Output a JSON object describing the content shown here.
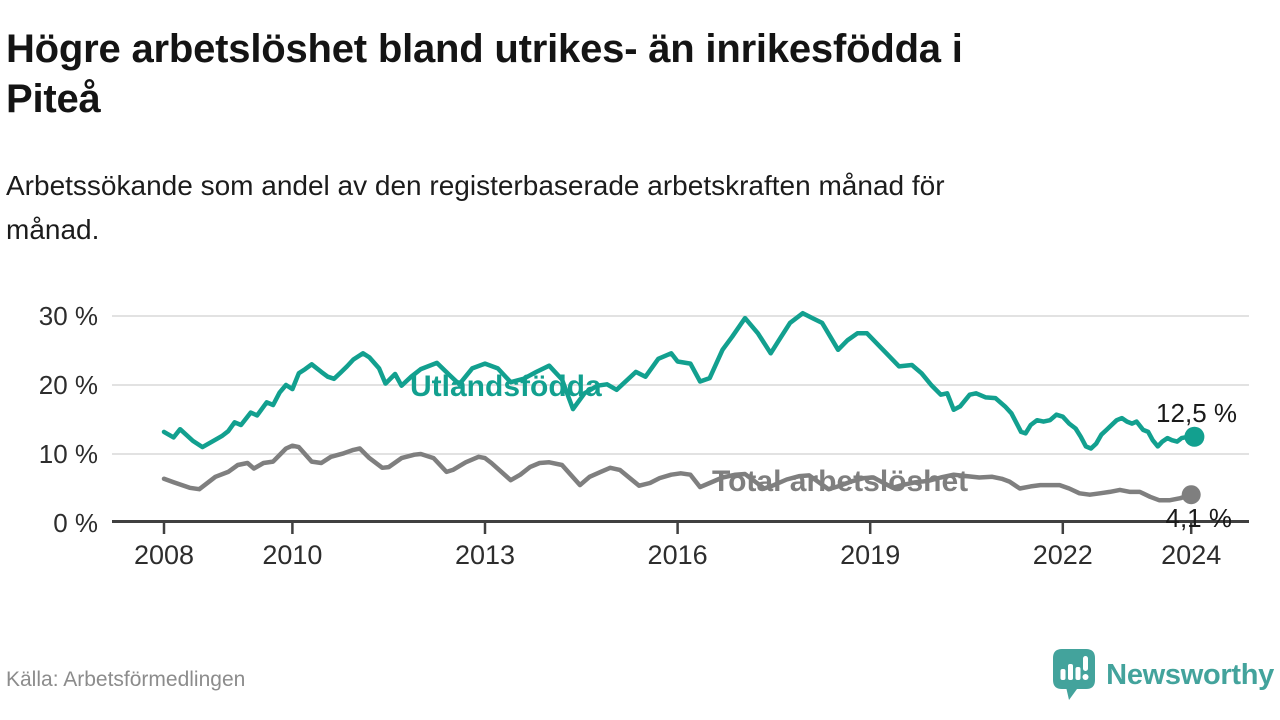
{
  "title": "Högre arbetslöshet bland utrikes- än inrikesfödda i Piteå",
  "subtitle": "Arbetssökande som andel av den registerbaserade arbetskraften månad för månad.",
  "source": "Källa: Arbetsförmedlingen",
  "brand": {
    "name": "Newsworthy",
    "color": "#43a39c",
    "icon": "speech-bubble-bar-chart-icon"
  },
  "colors": {
    "foreign_born_line": "#12a08f",
    "total_line": "#7f7f7f",
    "gridline": "#d9d9d9",
    "axis": "#404040",
    "value_label": "#1a1a1a",
    "muted_text": "#8c8c8c"
  },
  "chart_data": {
    "type": "line",
    "title": "Högre arbetslöshet bland utrikes- än inrikesfödda i Piteå",
    "subtitle": "Arbetssökande som andel av den registerbaserade arbetskraften månad för månad.",
    "unit": "%",
    "xlim": [
      2007.2,
      2024.9
    ],
    "ylim": [
      0,
      31
    ],
    "grid": true,
    "legend_position": "inline-labels",
    "x_ticks": [
      {
        "year": 2008,
        "label": "2008"
      },
      {
        "year": 2010,
        "label": "2010"
      },
      {
        "year": 2013,
        "label": "2013"
      },
      {
        "year": 2016,
        "label": "2016"
      },
      {
        "year": 2019,
        "label": "2019"
      },
      {
        "year": 2022,
        "label": "2022"
      },
      {
        "year": 2024,
        "label": "2024"
      }
    ],
    "y_ticks": [
      {
        "value": 0,
        "label": "0 %"
      },
      {
        "value": 10,
        "label": "10 %"
      },
      {
        "value": 20,
        "label": "20 %"
      },
      {
        "value": 30,
        "label": "30 %"
      }
    ],
    "series": [
      {
        "name": "Utlandsfödda",
        "color": "#12a08f",
        "end_label": "12,5 %",
        "end_value": 12.5,
        "points": [
          [
            2008.0,
            13.2
          ],
          [
            2008.15,
            12.4
          ],
          [
            2008.25,
            13.6
          ],
          [
            2008.45,
            11.9
          ],
          [
            2008.6,
            11.0
          ],
          [
            2008.75,
            11.8
          ],
          [
            2008.9,
            12.6
          ],
          [
            2009.0,
            13.3
          ],
          [
            2009.1,
            14.6
          ],
          [
            2009.2,
            14.2
          ],
          [
            2009.35,
            16.0
          ],
          [
            2009.45,
            15.6
          ],
          [
            2009.6,
            17.5
          ],
          [
            2009.7,
            17.1
          ],
          [
            2009.8,
            18.9
          ],
          [
            2009.9,
            20.0
          ],
          [
            2010.0,
            19.4
          ],
          [
            2010.1,
            21.7
          ],
          [
            2010.2,
            22.3
          ],
          [
            2010.3,
            23.0
          ],
          [
            2010.45,
            21.9
          ],
          [
            2010.55,
            21.2
          ],
          [
            2010.65,
            20.9
          ],
          [
            2010.75,
            21.8
          ],
          [
            2010.85,
            22.7
          ],
          [
            2010.95,
            23.7
          ],
          [
            2011.1,
            24.6
          ],
          [
            2011.2,
            24.0
          ],
          [
            2011.35,
            22.4
          ],
          [
            2011.45,
            20.2
          ],
          [
            2011.6,
            21.6
          ],
          [
            2011.7,
            19.9
          ],
          [
            2011.85,
            21.2
          ],
          [
            2012.0,
            22.3
          ],
          [
            2012.25,
            23.2
          ],
          [
            2012.45,
            21.4
          ],
          [
            2012.6,
            20.1
          ],
          [
            2012.8,
            22.4
          ],
          [
            2013.0,
            23.1
          ],
          [
            2013.2,
            22.4
          ],
          [
            2013.4,
            20.4
          ],
          [
            2013.6,
            20.9
          ],
          [
            2013.8,
            21.9
          ],
          [
            2014.0,
            22.8
          ],
          [
            2014.2,
            20.8
          ],
          [
            2014.37,
            16.5
          ],
          [
            2014.55,
            18.8
          ],
          [
            2014.75,
            19.9
          ],
          [
            2014.9,
            20.1
          ],
          [
            2015.05,
            19.3
          ],
          [
            2015.35,
            21.9
          ],
          [
            2015.5,
            21.2
          ],
          [
            2015.7,
            23.8
          ],
          [
            2015.9,
            24.6
          ],
          [
            2016.0,
            23.4
          ],
          [
            2016.2,
            23.1
          ],
          [
            2016.35,
            20.5
          ],
          [
            2016.5,
            21.0
          ],
          [
            2016.7,
            25.1
          ],
          [
            2016.85,
            27.0
          ],
          [
            2017.05,
            29.7
          ],
          [
            2017.25,
            27.5
          ],
          [
            2017.45,
            24.6
          ],
          [
            2017.6,
            26.8
          ],
          [
            2017.75,
            29.0
          ],
          [
            2017.95,
            30.4
          ],
          [
            2018.1,
            29.7
          ],
          [
            2018.25,
            29.0
          ],
          [
            2018.5,
            25.1
          ],
          [
            2018.65,
            26.5
          ],
          [
            2018.8,
            27.5
          ],
          [
            2018.95,
            27.5
          ],
          [
            2019.2,
            25.1
          ],
          [
            2019.45,
            22.7
          ],
          [
            2019.65,
            22.9
          ],
          [
            2019.8,
            21.7
          ],
          [
            2019.95,
            20.0
          ],
          [
            2020.1,
            18.6
          ],
          [
            2020.2,
            18.8
          ],
          [
            2020.3,
            16.4
          ],
          [
            2020.4,
            16.9
          ],
          [
            2020.55,
            18.6
          ],
          [
            2020.65,
            18.8
          ],
          [
            2020.8,
            18.2
          ],
          [
            2020.95,
            18.1
          ],
          [
            2021.1,
            16.9
          ],
          [
            2021.2,
            15.9
          ],
          [
            2021.35,
            13.2
          ],
          [
            2021.42,
            13.0
          ],
          [
            2021.5,
            14.2
          ],
          [
            2021.6,
            14.9
          ],
          [
            2021.7,
            14.7
          ],
          [
            2021.8,
            14.9
          ],
          [
            2021.9,
            15.7
          ],
          [
            2022.0,
            15.4
          ],
          [
            2022.1,
            14.4
          ],
          [
            2022.2,
            13.7
          ],
          [
            2022.28,
            12.5
          ],
          [
            2022.36,
            11.1
          ],
          [
            2022.44,
            10.8
          ],
          [
            2022.52,
            11.5
          ],
          [
            2022.6,
            12.8
          ],
          [
            2022.68,
            13.5
          ],
          [
            2022.76,
            14.2
          ],
          [
            2022.84,
            14.9
          ],
          [
            2022.92,
            15.2
          ],
          [
            2023.0,
            14.7
          ],
          [
            2023.08,
            14.4
          ],
          [
            2023.15,
            14.7
          ],
          [
            2023.25,
            13.5
          ],
          [
            2023.33,
            13.2
          ],
          [
            2023.4,
            12.0
          ],
          [
            2023.48,
            11.1
          ],
          [
            2023.55,
            11.8
          ],
          [
            2023.63,
            12.3
          ],
          [
            2023.7,
            12.0
          ],
          [
            2023.78,
            11.8
          ],
          [
            2023.85,
            12.3
          ],
          [
            2023.95,
            12.5
          ],
          [
            2024.05,
            12.5
          ]
        ]
      },
      {
        "name": "Total arbetslöshet",
        "color": "#7f7f7f",
        "end_label": "4,1 %",
        "end_value": 4.1,
        "points": [
          [
            2008.0,
            6.4
          ],
          [
            2008.15,
            5.9
          ],
          [
            2008.4,
            5.1
          ],
          [
            2008.55,
            4.9
          ],
          [
            2008.8,
            6.7
          ],
          [
            2009.0,
            7.4
          ],
          [
            2009.15,
            8.4
          ],
          [
            2009.3,
            8.7
          ],
          [
            2009.4,
            7.9
          ],
          [
            2009.55,
            8.7
          ],
          [
            2009.7,
            8.9
          ],
          [
            2009.9,
            10.8
          ],
          [
            2010.0,
            11.2
          ],
          [
            2010.1,
            11.0
          ],
          [
            2010.3,
            8.9
          ],
          [
            2010.45,
            8.7
          ],
          [
            2010.6,
            9.6
          ],
          [
            2010.8,
            10.1
          ],
          [
            2010.95,
            10.6
          ],
          [
            2011.05,
            10.8
          ],
          [
            2011.2,
            9.4
          ],
          [
            2011.4,
            8.0
          ],
          [
            2011.5,
            8.1
          ],
          [
            2011.7,
            9.4
          ],
          [
            2011.9,
            9.9
          ],
          [
            2012.0,
            10.0
          ],
          [
            2012.2,
            9.4
          ],
          [
            2012.4,
            7.4
          ],
          [
            2012.5,
            7.7
          ],
          [
            2012.7,
            8.8
          ],
          [
            2012.9,
            9.6
          ],
          [
            2013.0,
            9.4
          ],
          [
            2013.1,
            8.7
          ],
          [
            2013.4,
            6.2
          ],
          [
            2013.55,
            7.0
          ],
          [
            2013.7,
            8.1
          ],
          [
            2013.85,
            8.7
          ],
          [
            2014.0,
            8.8
          ],
          [
            2014.2,
            8.4
          ],
          [
            2014.48,
            5.5
          ],
          [
            2014.63,
            6.7
          ],
          [
            2014.8,
            7.4
          ],
          [
            2014.95,
            8.0
          ],
          [
            2015.1,
            7.7
          ],
          [
            2015.4,
            5.4
          ],
          [
            2015.57,
            5.8
          ],
          [
            2015.72,
            6.5
          ],
          [
            2015.9,
            7.0
          ],
          [
            2016.05,
            7.2
          ],
          [
            2016.2,
            7.0
          ],
          [
            2016.35,
            5.2
          ],
          [
            2016.5,
            5.8
          ],
          [
            2016.7,
            6.6
          ],
          [
            2016.9,
            7.0
          ],
          [
            2017.05,
            7.1
          ],
          [
            2017.35,
            5.0
          ],
          [
            2017.5,
            5.5
          ],
          [
            2017.7,
            6.3
          ],
          [
            2017.9,
            6.8
          ],
          [
            2018.05,
            6.9
          ],
          [
            2018.35,
            4.9
          ],
          [
            2018.5,
            5.3
          ],
          [
            2018.7,
            6.0
          ],
          [
            2018.9,
            6.5
          ],
          [
            2019.05,
            6.6
          ],
          [
            2019.35,
            5.1
          ],
          [
            2019.5,
            5.5
          ],
          [
            2019.7,
            5.9
          ],
          [
            2019.9,
            6.1
          ],
          [
            2020.1,
            6.6
          ],
          [
            2020.3,
            7.0
          ],
          [
            2020.5,
            6.8
          ],
          [
            2020.7,
            6.6
          ],
          [
            2020.9,
            6.7
          ],
          [
            2021.05,
            6.4
          ],
          [
            2021.17,
            6.0
          ],
          [
            2021.33,
            5.0
          ],
          [
            2021.5,
            5.3
          ],
          [
            2021.65,
            5.5
          ],
          [
            2021.8,
            5.5
          ],
          [
            2021.95,
            5.5
          ],
          [
            2022.1,
            5.0
          ],
          [
            2022.26,
            4.3
          ],
          [
            2022.42,
            4.1
          ],
          [
            2022.58,
            4.3
          ],
          [
            2022.73,
            4.5
          ],
          [
            2022.89,
            4.8
          ],
          [
            2023.05,
            4.5
          ],
          [
            2023.2,
            4.5
          ],
          [
            2023.36,
            3.8
          ],
          [
            2023.5,
            3.3
          ],
          [
            2023.67,
            3.3
          ],
          [
            2023.83,
            3.6
          ],
          [
            2024.0,
            4.1
          ]
        ]
      }
    ]
  }
}
